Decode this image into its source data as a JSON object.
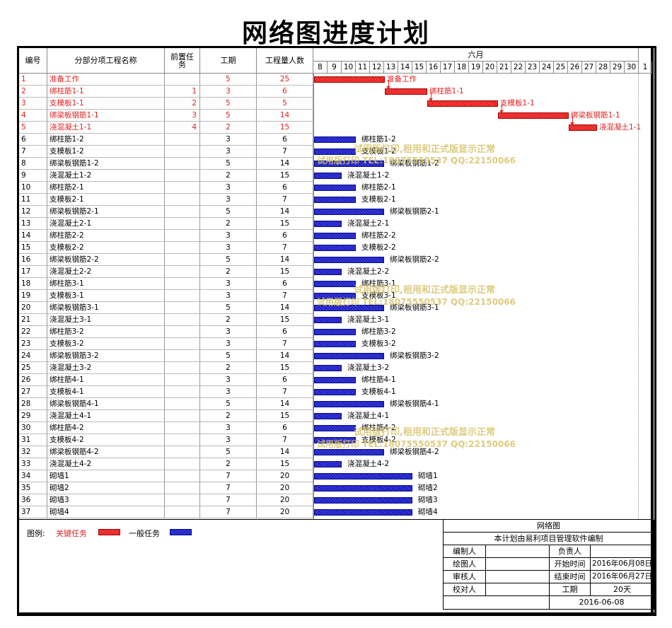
{
  "title": "网络图进度计划",
  "headers": {
    "id": "编号",
    "name": "分部分项工程名称",
    "pred": "前置任务",
    "duration": "工期",
    "workers": "工程量人数",
    "month": "六月"
  },
  "days": [
    "8",
    "9",
    "10",
    "11",
    "12",
    "13",
    "14",
    "15",
    "16",
    "17",
    "18",
    "19",
    "20",
    "21",
    "22",
    "23",
    "24",
    "25",
    "26",
    "27",
    "28",
    "29",
    "30",
    "1"
  ],
  "tasks": [
    {
      "id": "1",
      "name": "准备工作",
      "pred": "",
      "dur": "5",
      "workers": "25",
      "critical": true,
      "start": 0,
      "days": 5
    },
    {
      "id": "2",
      "name": "绑柱筋1-1",
      "pred": "1",
      "dur": "3",
      "workers": "6",
      "critical": true,
      "start": 5,
      "days": 3
    },
    {
      "id": "3",
      "name": "支模板1-1",
      "pred": "2",
      "dur": "5",
      "workers": "5",
      "critical": true,
      "start": 8,
      "days": 5
    },
    {
      "id": "4",
      "name": "绑梁板钢筋1-1",
      "pred": "3",
      "dur": "5",
      "workers": "14",
      "critical": true,
      "start": 13,
      "days": 5
    },
    {
      "id": "5",
      "name": "浇混凝土1-1",
      "pred": "4",
      "dur": "2",
      "workers": "15",
      "critical": true,
      "start": 18,
      "days": 2
    },
    {
      "id": "6",
      "name": "绑柱筋1-2",
      "pred": "",
      "dur": "3",
      "workers": "6",
      "critical": false,
      "start": 0,
      "days": 3
    },
    {
      "id": "7",
      "name": "支模板1-2",
      "pred": "",
      "dur": "3",
      "workers": "7",
      "critical": false,
      "start": 0,
      "days": 3
    },
    {
      "id": "8",
      "name": "绑梁板钢筋1-2",
      "pred": "",
      "dur": "5",
      "workers": "14",
      "critical": false,
      "start": 0,
      "days": 5
    },
    {
      "id": "9",
      "name": "浇混凝土1-2",
      "pred": "",
      "dur": "2",
      "workers": "15",
      "critical": false,
      "start": 0,
      "days": 2
    },
    {
      "id": "10",
      "name": "绑柱筋2-1",
      "pred": "",
      "dur": "3",
      "workers": "6",
      "critical": false,
      "start": 0,
      "days": 3
    },
    {
      "id": "11",
      "name": "支模板2-1",
      "pred": "",
      "dur": "3",
      "workers": "7",
      "critical": false,
      "start": 0,
      "days": 3
    },
    {
      "id": "12",
      "name": "绑梁板钢筋2-1",
      "pred": "",
      "dur": "5",
      "workers": "14",
      "critical": false,
      "start": 0,
      "days": 5
    },
    {
      "id": "13",
      "name": "浇混凝土2-1",
      "pred": "",
      "dur": "2",
      "workers": "15",
      "critical": false,
      "start": 0,
      "days": 2
    },
    {
      "id": "14",
      "name": "绑柱筋2-2",
      "pred": "",
      "dur": "3",
      "workers": "6",
      "critical": false,
      "start": 0,
      "days": 3
    },
    {
      "id": "15",
      "name": "支模板2-2",
      "pred": "",
      "dur": "3",
      "workers": "7",
      "critical": false,
      "start": 0,
      "days": 3
    },
    {
      "id": "16",
      "name": "绑梁板钢筋2-2",
      "pred": "",
      "dur": "5",
      "workers": "14",
      "critical": false,
      "start": 0,
      "days": 5
    },
    {
      "id": "17",
      "name": "浇混凝土2-2",
      "pred": "",
      "dur": "2",
      "workers": "15",
      "critical": false,
      "start": 0,
      "days": 2
    },
    {
      "id": "18",
      "name": "绑柱筋3-1",
      "pred": "",
      "dur": "3",
      "workers": "6",
      "critical": false,
      "start": 0,
      "days": 3
    },
    {
      "id": "19",
      "name": "支模板3-1",
      "pred": "",
      "dur": "3",
      "workers": "7",
      "critical": false,
      "start": 0,
      "days": 3
    },
    {
      "id": "20",
      "name": "绑梁板钢筋3-1",
      "pred": "",
      "dur": "5",
      "workers": "14",
      "critical": false,
      "start": 0,
      "days": 5
    },
    {
      "id": "21",
      "name": "浇混凝土3-1",
      "pred": "",
      "dur": "2",
      "workers": "15",
      "critical": false,
      "start": 0,
      "days": 2
    },
    {
      "id": "22",
      "name": "绑柱筋3-2",
      "pred": "",
      "dur": "3",
      "workers": "6",
      "critical": false,
      "start": 0,
      "days": 3
    },
    {
      "id": "23",
      "name": "支模板3-2",
      "pred": "",
      "dur": "3",
      "workers": "7",
      "critical": false,
      "start": 0,
      "days": 3
    },
    {
      "id": "24",
      "name": "绑梁板钢筋3-2",
      "pred": "",
      "dur": "5",
      "workers": "14",
      "critical": false,
      "start": 0,
      "days": 5
    },
    {
      "id": "25",
      "name": "浇混凝土3-2",
      "pred": "",
      "dur": "2",
      "workers": "15",
      "critical": false,
      "start": 0,
      "days": 2
    },
    {
      "id": "26",
      "name": "绑柱筋4-1",
      "pred": "",
      "dur": "3",
      "workers": "6",
      "critical": false,
      "start": 0,
      "days": 3
    },
    {
      "id": "27",
      "name": "支模板4-1",
      "pred": "",
      "dur": "3",
      "workers": "7",
      "critical": false,
      "start": 0,
      "days": 3
    },
    {
      "id": "28",
      "name": "绑梁板钢筋4-1",
      "pred": "",
      "dur": "5",
      "workers": "14",
      "critical": false,
      "start": 0,
      "days": 5
    },
    {
      "id": "29",
      "name": "浇混凝土4-1",
      "pred": "",
      "dur": "2",
      "workers": "15",
      "critical": false,
      "start": 0,
      "days": 2
    },
    {
      "id": "30",
      "name": "绑柱筋4-2",
      "pred": "",
      "dur": "3",
      "workers": "6",
      "critical": false,
      "start": 0,
      "days": 3
    },
    {
      "id": "31",
      "name": "支模板4-2",
      "pred": "",
      "dur": "3",
      "workers": "7",
      "critical": false,
      "start": 0,
      "days": 3
    },
    {
      "id": "32",
      "name": "绑梁板钢筋4-2",
      "pred": "",
      "dur": "5",
      "workers": "14",
      "critical": false,
      "start": 0,
      "days": 5
    },
    {
      "id": "33",
      "name": "浇混凝土4-2",
      "pred": "",
      "dur": "2",
      "workers": "15",
      "critical": false,
      "start": 0,
      "days": 2
    },
    {
      "id": "34",
      "name": "砌墙1",
      "pred": "",
      "dur": "7",
      "workers": "20",
      "critical": false,
      "start": 0,
      "days": 7
    },
    {
      "id": "35",
      "name": "砌墙2",
      "pred": "",
      "dur": "7",
      "workers": "20",
      "critical": false,
      "start": 0,
      "days": 7
    },
    {
      "id": "36",
      "name": "砌墙3",
      "pred": "",
      "dur": "7",
      "workers": "20",
      "critical": false,
      "start": 0,
      "days": 7
    },
    {
      "id": "37",
      "name": "砌墙4",
      "pred": "",
      "dur": "7",
      "workers": "20",
      "critical": false,
      "start": 0,
      "days": 7
    }
  ],
  "watermarks": [
    {
      "line1": "试用版打印,租用和正式版显示正常",
      "line2": "试用版打印 TEL:18075550537 QQ:22150066"
    },
    {
      "line1": "试用版打印,租用和正式版显示正常",
      "line2": "试用版打印 TEL:18075550537 QQ:22150066"
    },
    {
      "line1": "试用版打印,租用和正式版显示正常",
      "line2": "试用版打印 TEL:18075550537 QQ:22150066"
    }
  ],
  "legend": {
    "label": "图例:",
    "critical_label": "关键任务",
    "normal_label": "一般任务",
    "critical_color": "#e02020",
    "normal_color": "#1b1bc0"
  },
  "title_block": {
    "heading": "网络图",
    "subtitle": "本计划由易利项目管理软件编制",
    "editor_label": "编制人",
    "editor_value": "",
    "owner_label": "负责人",
    "owner_value": "",
    "drawer_label": "绘图人",
    "drawer_value": "",
    "start_label": "开始时间",
    "start_value": "2016年06月08日",
    "reviewer_label": "审核人",
    "reviewer_value": "",
    "end_label": "结束时间",
    "end_value": "2016年06月27日",
    "checker_label": "校对人",
    "checker_value": "",
    "duration_label": "工期",
    "duration_value": "20天",
    "date": "2016-06-08"
  }
}
